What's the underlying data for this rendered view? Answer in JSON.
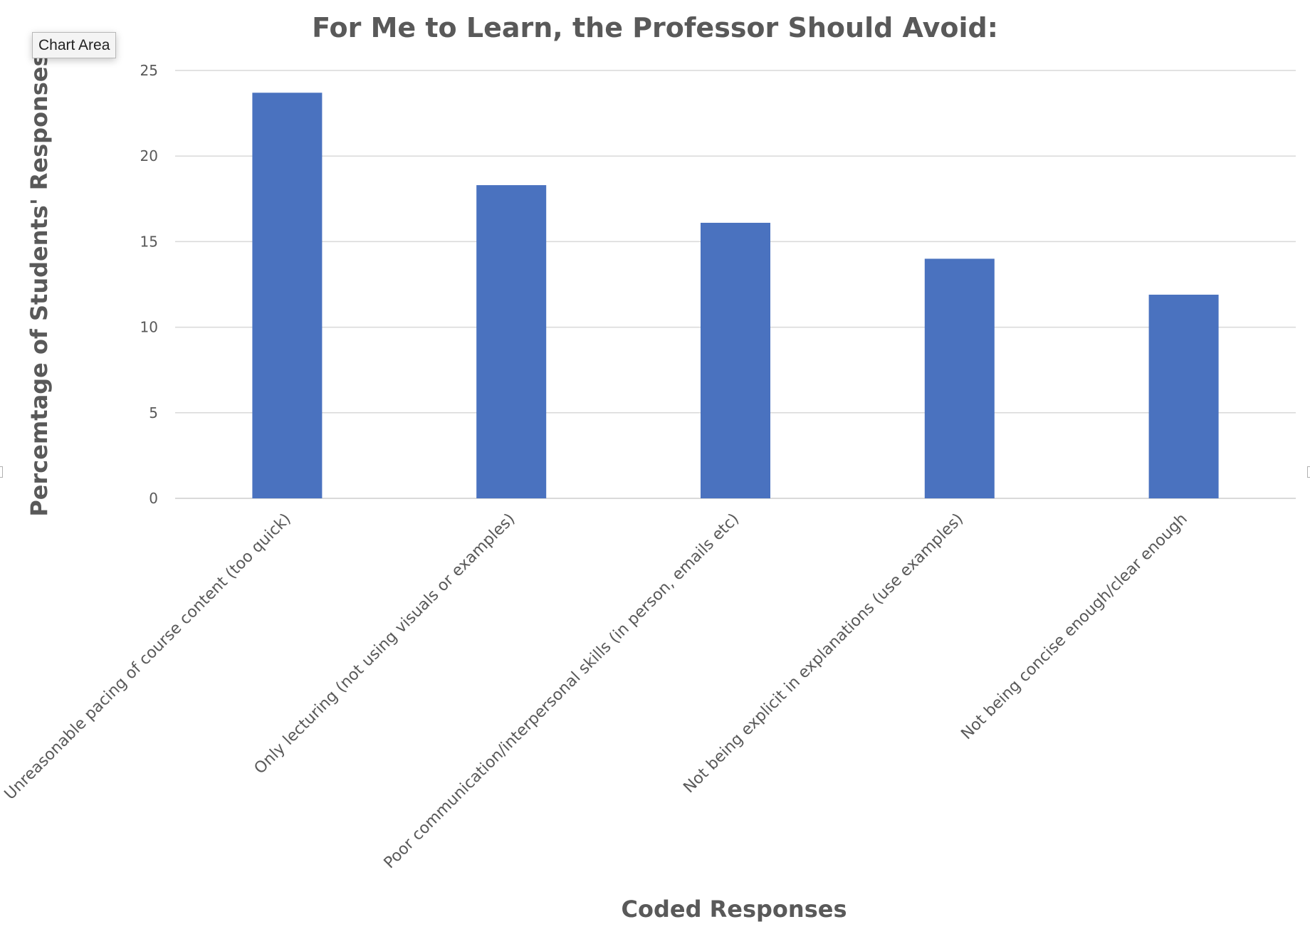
{
  "tooltip": "Chart Area",
  "colors": {
    "bar": "#4a72bf",
    "grid": "#d9d9d9",
    "text": "#595959"
  },
  "chart_data": {
    "type": "bar",
    "title": "For Me to Learn, the Professor Should Avoid:",
    "xlabel": "Coded Responses",
    "ylabel": "Percemtage of Students' Responses",
    "categories": [
      "Unreasonable pacing of course content (too quick)",
      "Only lecturing (not using visuals or examples)",
      "Poor communication/interpersonal skills (in person, emails etc)",
      "Not being explicit in explanations (use examples)",
      "Not being concise enough/clear enough"
    ],
    "values": [
      23.7,
      18.3,
      16.1,
      14.0,
      11.9
    ],
    "ylim": [
      0,
      25
    ],
    "yticks": [
      "0",
      "5",
      "10",
      "15",
      "20",
      "25"
    ],
    "grid": true,
    "legend": "none"
  }
}
